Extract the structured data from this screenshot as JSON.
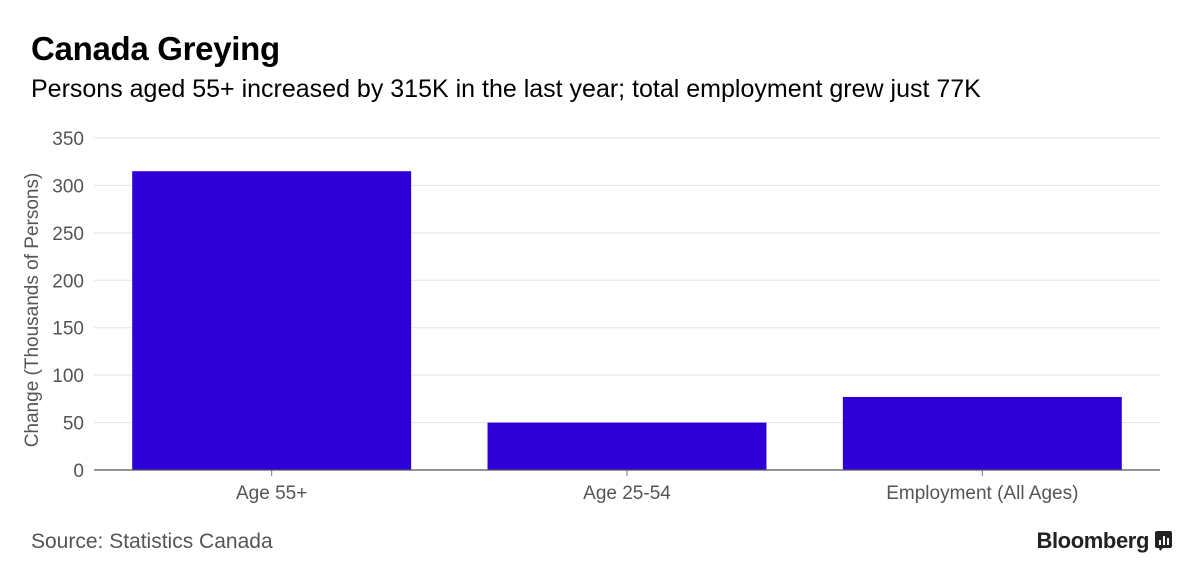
{
  "header": {
    "title": "Canada Greying",
    "subtitle": "Persons aged 55+ increased by 315K in the last year; total employment grew just 77K"
  },
  "footer": {
    "source": "Source: Statistics Canada",
    "brand": "Bloomberg",
    "brand_icon": "bloomberg-chart-icon"
  },
  "chart_data": {
    "type": "bar",
    "categories": [
      "Age 55+",
      "Age 25-54",
      "Employment (All Ages)"
    ],
    "values": [
      315,
      50,
      77
    ],
    "ylabel": "Change (Thousands of Persons)",
    "ylim": [
      0,
      350
    ],
    "yticks": [
      0,
      50,
      100,
      150,
      200,
      250,
      300,
      350
    ],
    "grid": true,
    "bar_color": "#2d00d8"
  }
}
